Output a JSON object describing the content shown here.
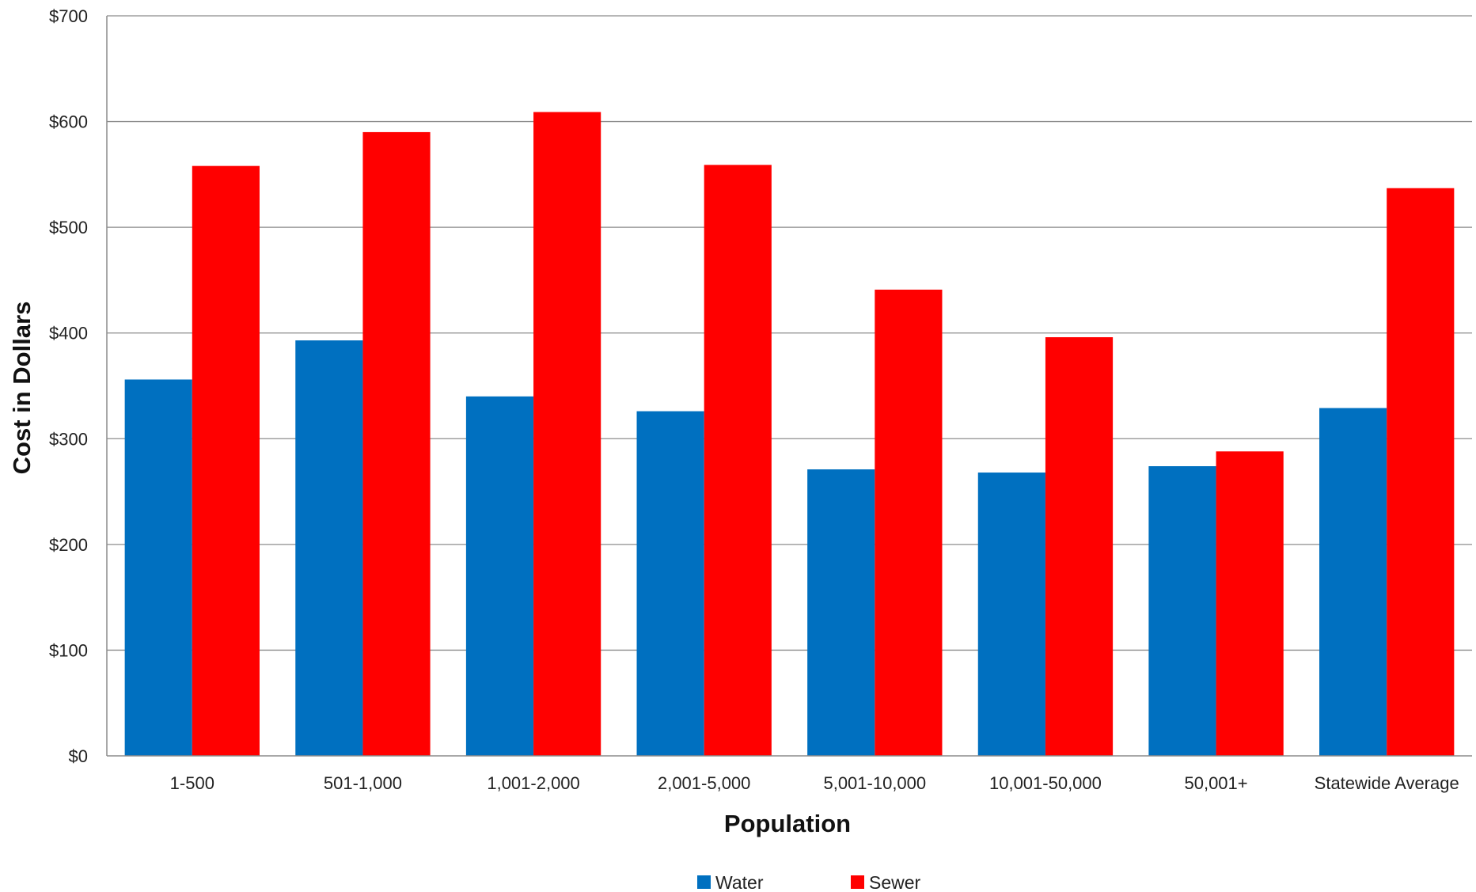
{
  "chart_data": {
    "type": "bar",
    "title": "",
    "xlabel": "Population",
    "ylabel": "Cost in Dollars",
    "categories": [
      "1-500",
      "501-1,000",
      "1,001-2,000",
      "2,001-5,000",
      "5,001-10,000",
      "10,001-50,000",
      "50,001+",
      "Statewide Average"
    ],
    "series": [
      {
        "name": "Water",
        "color": "#0070c0",
        "values": [
          356,
          393,
          340,
          326,
          271,
          268,
          274,
          329
        ]
      },
      {
        "name": "Sewer",
        "color": "#ff0000",
        "values": [
          558,
          590,
          609,
          559,
          441,
          396,
          288,
          537
        ]
      }
    ],
    "ylim": [
      0,
      700
    ],
    "yticks": [
      0,
      100,
      200,
      300,
      400,
      500,
      600,
      700
    ],
    "ytick_labels": [
      "$0",
      "$100",
      "$200",
      "$300",
      "$400",
      "$500",
      "$600",
      "$700"
    ],
    "grid": true,
    "legend_position": "bottom"
  }
}
